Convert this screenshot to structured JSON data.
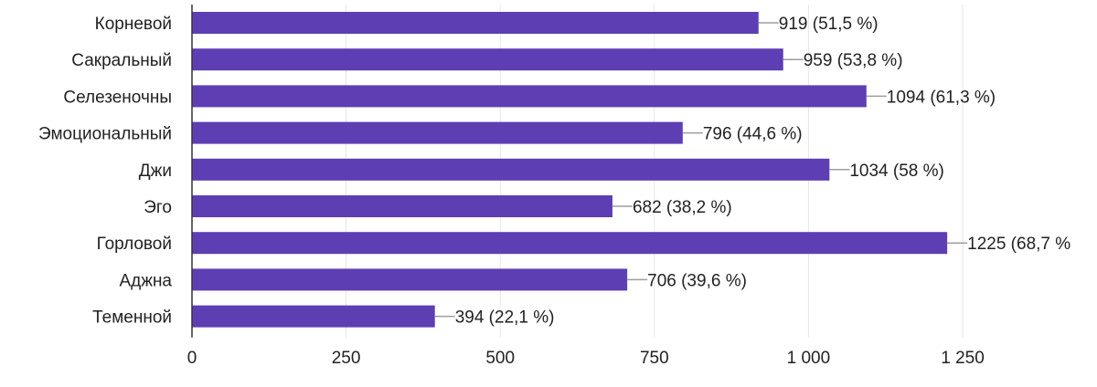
{
  "chart_data": {
    "type": "bar",
    "orientation": "horizontal",
    "title": "",
    "xlabel": "",
    "ylabel": "",
    "categories": [
      "Корневой",
      "Сакральный",
      "Селезеночны",
      "Эмоциональный",
      "Джи",
      "Эго",
      "Горловой",
      "Аджна",
      "Теменной"
    ],
    "values": [
      919,
      959,
      1094,
      796,
      1034,
      682,
      1225,
      706,
      394
    ],
    "data_labels": [
      "919 (51,5 %)",
      "959 (53,8 %)",
      "1094 (61,3 %)",
      "796 (44,6 %)",
      "1034 (58 %)",
      "682 (38,2 %)",
      "1225 (68,7 %",
      "706 (39,6 %)",
      "394 (22,1 %)"
    ],
    "xlim": [
      0,
      1250
    ],
    "x_ticks": [
      0,
      250,
      500,
      750,
      1000,
      1250
    ],
    "x_tick_labels": [
      "0",
      "250",
      "500",
      "750",
      "1 000",
      "1 250"
    ],
    "grid": true,
    "legend": "none",
    "bar_color": "#5e3eb3",
    "grid_color": "#e6e6e6",
    "axis_color": "#333333",
    "leader_color": "#9e9e9e"
  }
}
